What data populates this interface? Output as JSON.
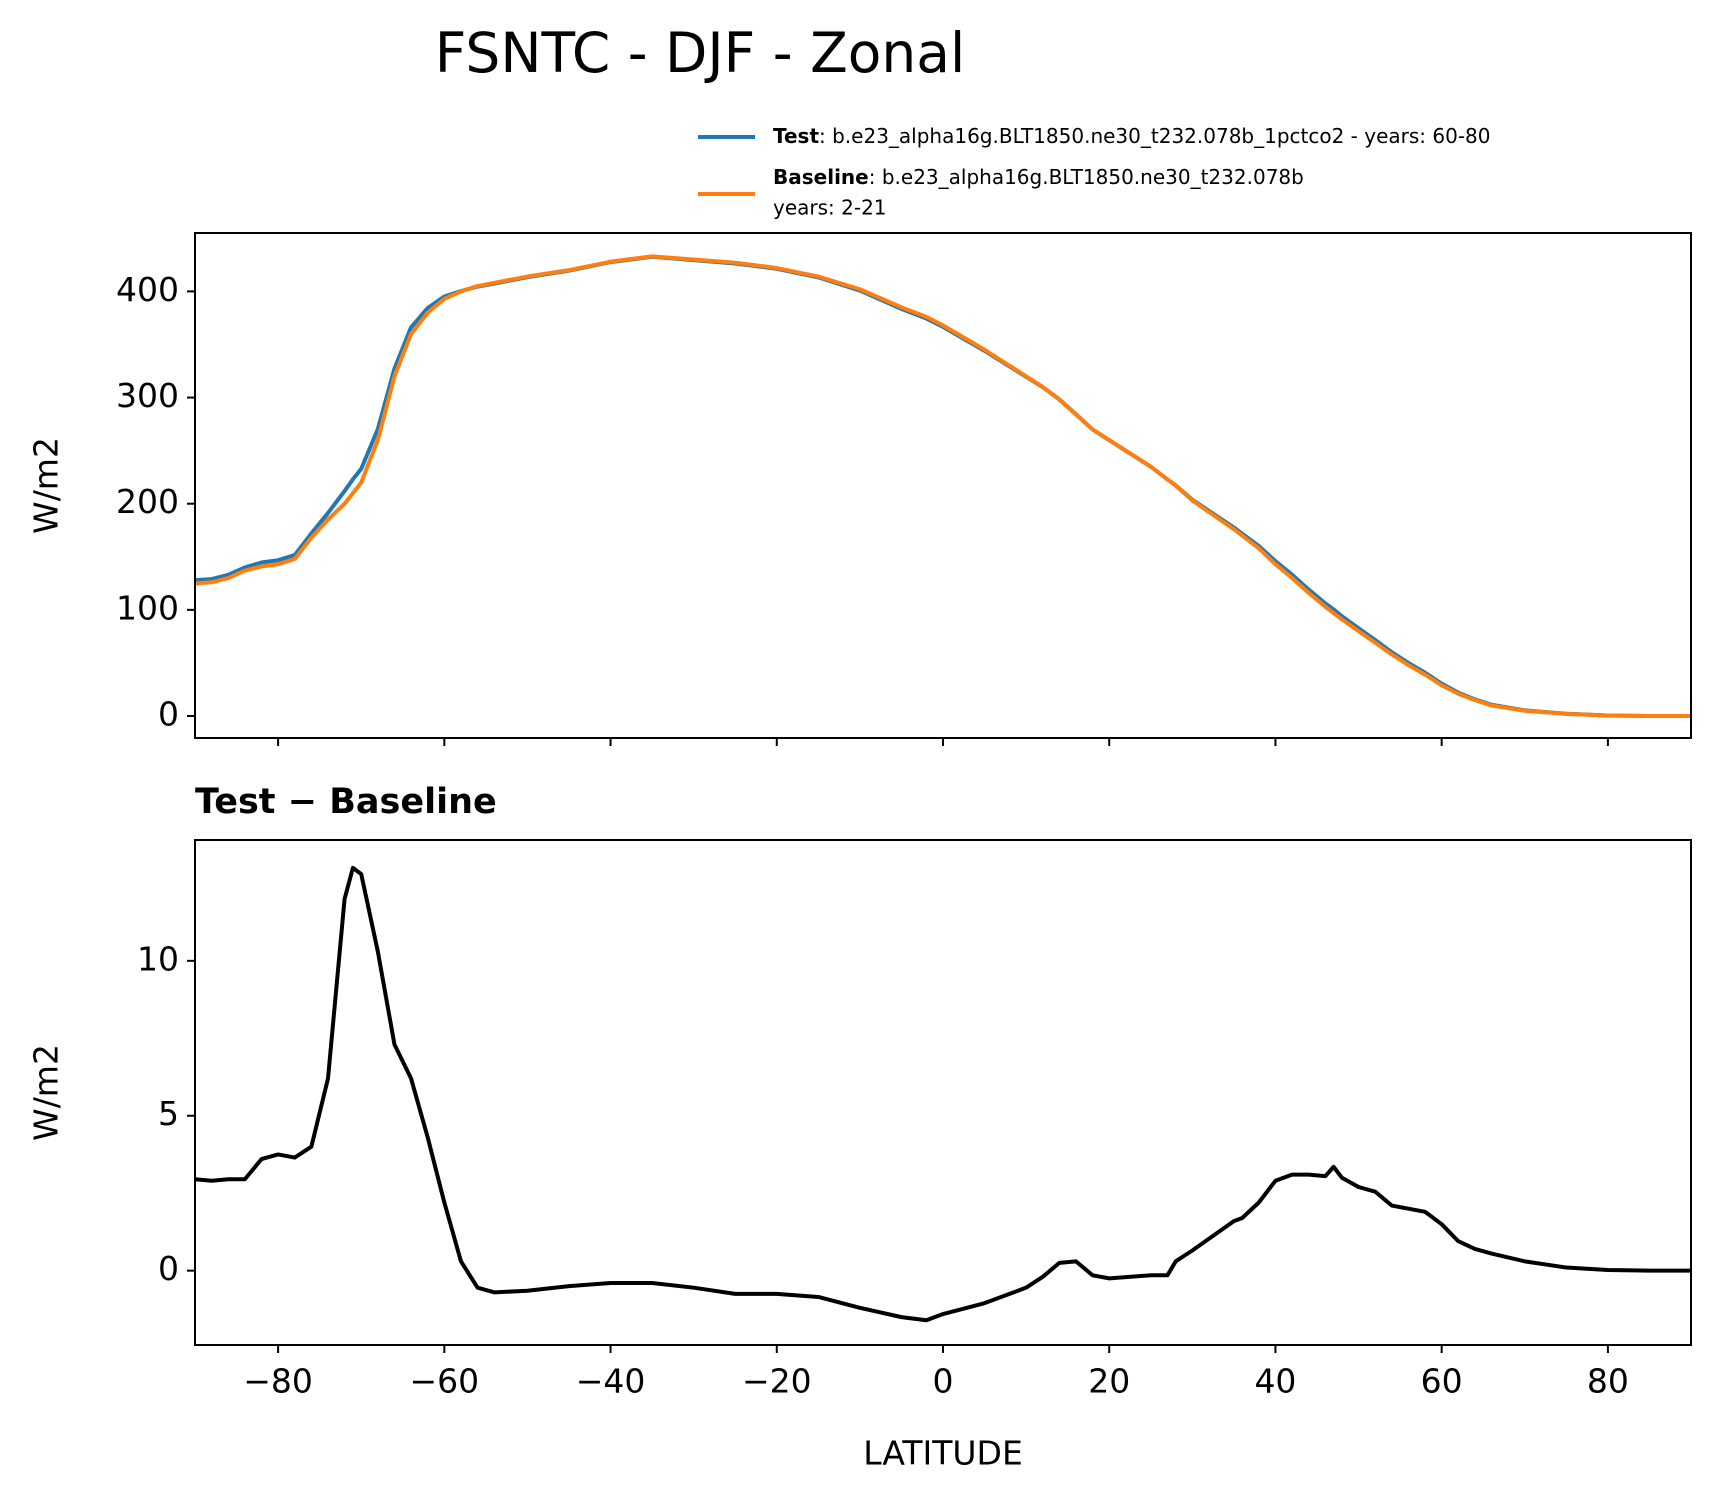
{
  "chart_data": [
    {
      "type": "line",
      "title": "FSNTC - DJF - Zonal",
      "ylabel": "W/m2",
      "x": [
        -90,
        -88,
        -86,
        -84,
        -82,
        -80,
        -78,
        -76,
        -74,
        -72,
        -71,
        -70,
        -68,
        -66,
        -64,
        -62,
        -60,
        -58,
        -56,
        -54,
        -50,
        -45,
        -40,
        -35,
        -30,
        -25,
        -20,
        -15,
        -10,
        -5,
        -2,
        0,
        5,
        10,
        12,
        14,
        16,
        18,
        20,
        25,
        27,
        28,
        30,
        35,
        36,
        38,
        40,
        42,
        44,
        46,
        47,
        48,
        50,
        52,
        54,
        56,
        58,
        60,
        62,
        64,
        66,
        70,
        75,
        80,
        85,
        90
      ],
      "series": [
        {
          "name": "Test",
          "legend_lines": [
            ": b.e23_alpha16g.BLT1850.ne30_t232.078b_1pctco2 - years: 60-80"
          ],
          "color": "#1f77b4",
          "values": [
            128,
            129,
            133,
            140,
            144.6,
            146.8,
            151.6,
            172,
            191.2,
            212,
            223,
            232.8,
            270.3,
            327.3,
            366.2,
            384.3,
            395.2,
            400.3,
            404.5,
            407.3,
            413.4,
            419.5,
            427.6,
            432.6,
            429.5,
            426.3,
            421.3,
            413.2,
            400.8,
            383.5,
            374.4,
            366.6,
            344,
            319.5,
            309.8,
            298.3,
            284.3,
            269.9,
            259.8,
            234.9,
            222.9,
            217.3,
            203.7,
            177.6,
            171.7,
            160.2,
            145.9,
            133.1,
            119.1,
            106.1,
            100.4,
            94,
            82.7,
            71.6,
            60.1,
            50,
            40.9,
            30.5,
            22,
            15.7,
            10.6,
            5.3,
            2.1,
            0.5,
            0,
            0
          ]
        },
        {
          "name": "Baseline",
          "legend_lines": [
            ": b.e23_alpha16g.BLT1850.ne30_t232.078b",
            "years: 2-21"
          ],
          "color": "#ff7f0e",
          "values": [
            125,
            126,
            130,
            137,
            141,
            143,
            148,
            168,
            185,
            200,
            210,
            220,
            260,
            320,
            360,
            380,
            393,
            400,
            405,
            408,
            414,
            420,
            428,
            433,
            430,
            427,
            422,
            414,
            402,
            385,
            376,
            368,
            345,
            320,
            310,
            298,
            284,
            270,
            260,
            235,
            223,
            217,
            203,
            176,
            170,
            158,
            143,
            130,
            116,
            103,
            97,
            91,
            80,
            69,
            58,
            48,
            39,
            29,
            21,
            15,
            10,
            5,
            2,
            0.5,
            0,
            0
          ]
        }
      ],
      "xlim": [
        -90,
        90
      ],
      "ylim": [
        -20.7,
        455
      ],
      "xticks": [
        -80,
        -60,
        -40,
        -20,
        0,
        20,
        40,
        60,
        80
      ],
      "yticks": [
        0,
        100,
        200,
        300,
        400
      ]
    },
    {
      "type": "line",
      "title": "Test − Baseline",
      "ylabel": "W/m2",
      "xlabel": "LATITUDE",
      "x": [
        -90,
        -88,
        -86,
        -84,
        -82,
        -80,
        -78,
        -76,
        -74,
        -72,
        -71,
        -70,
        -68,
        -66,
        -64,
        -62,
        -60,
        -58,
        -56,
        -54,
        -50,
        -45,
        -40,
        -35,
        -30,
        -25,
        -20,
        -15,
        -10,
        -5,
        -2,
        0,
        5,
        10,
        12,
        14,
        16,
        18,
        20,
        25,
        27,
        28,
        30,
        35,
        36,
        38,
        40,
        42,
        44,
        46,
        47,
        48,
        50,
        52,
        54,
        56,
        58,
        60,
        62,
        64,
        66,
        70,
        75,
        80,
        85,
        90
      ],
      "series": [
        {
          "color": "#000000",
          "values": [
            2.95,
            2.9,
            2.95,
            2.95,
            3.6,
            3.75,
            3.65,
            4.0,
            6.2,
            12.0,
            13.0,
            12.8,
            10.3,
            7.3,
            6.2,
            4.3,
            2.2,
            0.3,
            -0.55,
            -0.7,
            -0.65,
            -0.5,
            -0.4,
            -0.4,
            -0.55,
            -0.75,
            -0.75,
            -0.85,
            -1.2,
            -1.5,
            -1.6,
            -1.4,
            -1.05,
            -0.55,
            -0.2,
            0.25,
            0.3,
            -0.15,
            -0.25,
            -0.15,
            -0.15,
            0.3,
            0.65,
            1.6,
            1.7,
            2.2,
            2.9,
            3.1,
            3.1,
            3.05,
            3.35,
            3.0,
            2.7,
            2.55,
            2.1,
            2.0,
            1.9,
            1.5,
            0.95,
            0.7,
            0.55,
            0.3,
            0.1,
            0.02,
            0,
            0
          ]
        }
      ],
      "xlim": [
        -90,
        90
      ],
      "ylim": [
        -2.4,
        13.9
      ],
      "xticks": [
        {
          "value": -80,
          "label": "−80"
        },
        {
          "value": -60,
          "label": "−60"
        },
        {
          "value": -40,
          "label": "−40"
        },
        {
          "value": -20,
          "label": "−20"
        },
        0,
        20,
        40,
        60,
        80
      ],
      "yticks": [
        0,
        5,
        10
      ]
    }
  ]
}
